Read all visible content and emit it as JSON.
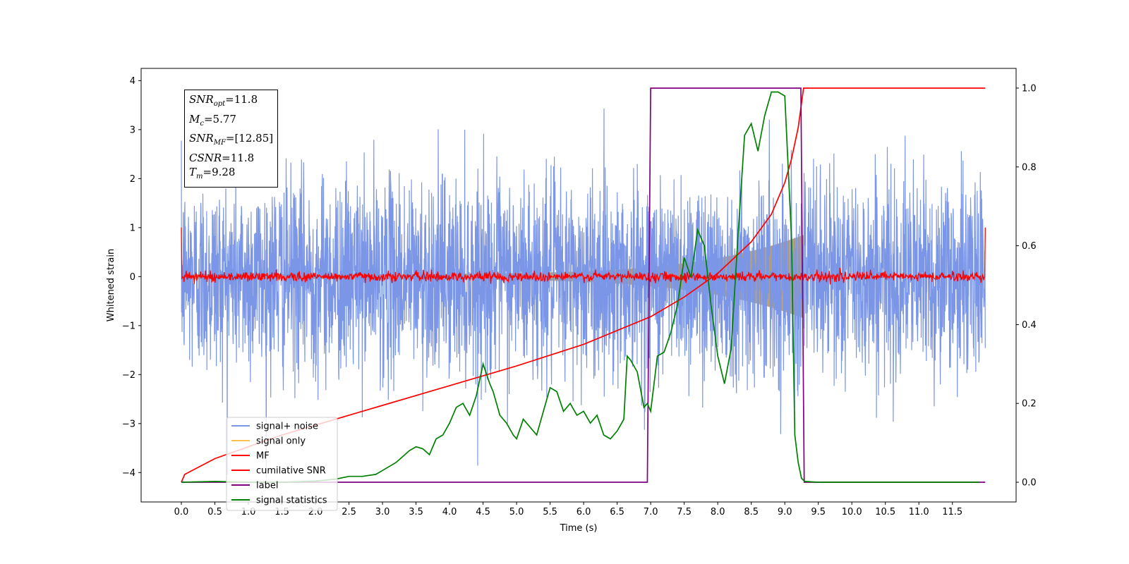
{
  "chart_data": {
    "type": "line",
    "xlabel": "Time (s)",
    "ylabel": "Whitened strain",
    "xlim": [
      -0.6,
      12.45
    ],
    "ylim": [
      -4.6,
      4.25
    ],
    "y2lim": [
      -0.05,
      1.05
    ],
    "x_ticks": [
      "0.0",
      "0.5",
      "1.0",
      "1.5",
      "2.0",
      "2.5",
      "3.0",
      "3.5",
      "4.0",
      "4.5",
      "5.0",
      "5.5",
      "6.0",
      "6.5",
      "7.0",
      "7.5",
      "8.0",
      "8.5",
      "9.0",
      "9.5",
      "10.0",
      "10.5",
      "11.0",
      "11.5"
    ],
    "y_ticks": [
      "4",
      "3",
      "2",
      "1",
      "0",
      "−1",
      "−2",
      "−3",
      "−4"
    ],
    "y2_ticks": [
      "1.0",
      "0.8",
      "0.6",
      "0.4",
      "0.2",
      "0.0"
    ],
    "legend": {
      "placement": "lower-left",
      "entries": [
        "signal+ noise",
        "signal only",
        "MF",
        "cumilative SNR",
        "label",
        "signal statistics"
      ]
    },
    "annotations": {
      "snr_opt": "=11.8",
      "mc": "=5.77",
      "snr_mf": "=[12.85]",
      "csnr": "=11.8",
      "tm": "=9.28"
    },
    "series": [
      {
        "name": "signal+ noise",
        "color": "#7b96e6",
        "axis": "left",
        "kind": "noise",
        "std": 1.0,
        "x_range": [
          0.0,
          11.99
        ]
      },
      {
        "name": "signal only",
        "color": "#ffc04d",
        "axis": "left",
        "kind": "chirp",
        "amp_start": 0.05,
        "amp_end": 0.85,
        "t_merge": 9.28
      },
      {
        "name": "MF",
        "color": "#ff0000",
        "axis": "left",
        "kind": "noise",
        "std": 0.05,
        "edge_value": 1.0
      },
      {
        "name": "cumilative SNR",
        "color": "#ff0000",
        "axis": "right",
        "x": [
          0.0,
          0.05,
          0.5,
          1.0,
          1.5,
          2.0,
          3.0,
          4.0,
          5.0,
          6.0,
          7.0,
          7.5,
          8.0,
          8.5,
          8.8,
          9.0,
          9.1,
          9.2,
          9.28,
          11.99
        ],
        "y": [
          0.0,
          0.02,
          0.06,
          0.09,
          0.12,
          0.145,
          0.195,
          0.245,
          0.295,
          0.35,
          0.42,
          0.47,
          0.53,
          0.61,
          0.68,
          0.76,
          0.82,
          0.9,
          1.0,
          1.0
        ]
      },
      {
        "name": "label",
        "color": "#800080",
        "axis": "right",
        "x": [
          0.0,
          6.95,
          7.0,
          9.24,
          9.29,
          11.99
        ],
        "y": [
          0.0,
          0.0,
          1.0,
          1.0,
          0.0,
          0.0
        ]
      },
      {
        "name": "signal statistics",
        "color": "#008000",
        "axis": "right",
        "x": [
          0.0,
          0.5,
          1.0,
          1.5,
          2.0,
          2.3,
          2.5,
          2.7,
          2.9,
          3.0,
          3.2,
          3.3,
          3.4,
          3.5,
          3.6,
          3.7,
          3.8,
          3.9,
          4.0,
          4.1,
          4.2,
          4.3,
          4.4,
          4.5,
          4.6,
          4.65,
          4.75,
          4.85,
          4.95,
          5.0,
          5.1,
          5.2,
          5.3,
          5.4,
          5.5,
          5.6,
          5.7,
          5.8,
          5.9,
          6.0,
          6.1,
          6.2,
          6.3,
          6.4,
          6.5,
          6.6,
          6.65,
          6.7,
          6.8,
          6.9,
          6.95,
          7.0,
          7.05,
          7.1,
          7.2,
          7.3,
          7.4,
          7.5,
          7.6,
          7.7,
          7.8,
          7.9,
          8.0,
          8.1,
          8.2,
          8.3,
          8.4,
          8.5,
          8.6,
          8.7,
          8.8,
          8.9,
          9.0,
          9.1,
          9.15,
          9.2,
          9.25,
          9.3,
          9.5,
          10.0,
          11.0,
          11.9
        ],
        "y": [
          0.0,
          0.002,
          0.0,
          0.0,
          0.003,
          0.008,
          0.015,
          0.015,
          0.02,
          0.03,
          0.05,
          0.065,
          0.08,
          0.09,
          0.085,
          0.07,
          0.11,
          0.12,
          0.15,
          0.19,
          0.2,
          0.17,
          0.22,
          0.3,
          0.25,
          0.23,
          0.17,
          0.15,
          0.12,
          0.11,
          0.16,
          0.14,
          0.12,
          0.18,
          0.24,
          0.23,
          0.18,
          0.2,
          0.17,
          0.18,
          0.15,
          0.17,
          0.12,
          0.11,
          0.13,
          0.16,
          0.32,
          0.31,
          0.28,
          0.19,
          0.2,
          0.18,
          0.25,
          0.32,
          0.33,
          0.38,
          0.45,
          0.57,
          0.52,
          0.64,
          0.6,
          0.45,
          0.32,
          0.25,
          0.34,
          0.62,
          0.88,
          0.91,
          0.84,
          0.93,
          0.99,
          0.99,
          0.98,
          0.62,
          0.12,
          0.05,
          0.01,
          0.002,
          0.0,
          0.0,
          0.0,
          0.0
        ]
      }
    ]
  }
}
